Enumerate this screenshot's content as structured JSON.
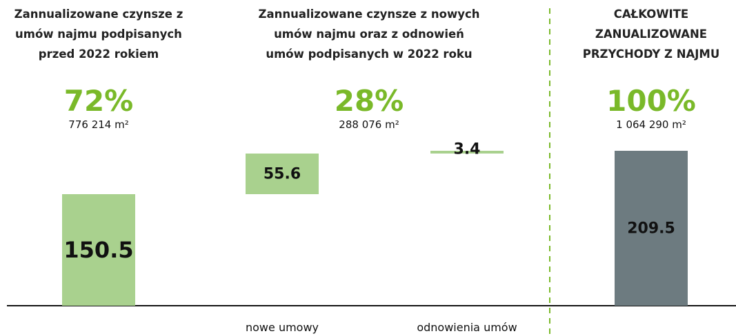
{
  "chart_data": {
    "type": "waterfall",
    "groups": [
      {
        "title_lines": [
          "Zannualizowane czynsze z",
          "umów najmu podpisanych",
          "przed 2022 rokiem"
        ],
        "share": "72%",
        "area": "776 214 m²"
      },
      {
        "title_lines": [
          "Zannualizowane czynsze z nowych",
          "umów najmu oraz z odnowień",
          "umów podpisanych w 2022 roku"
        ],
        "share": "28%",
        "area": "288 076 m²"
      },
      {
        "title_lines": [
          "CAŁKOWITE",
          "ZANUALIZOWANE",
          "PRZYCHODY Z NAJMU"
        ],
        "share": "100%",
        "area": "1 064 290 m²"
      }
    ],
    "categories": [
      null,
      "nowe umowy",
      "odnowienia umów",
      null
    ],
    "values": [
      150.5,
      55.6,
      3.4,
      209.5
    ],
    "totals": [
      false,
      false,
      false,
      true
    ],
    "colors": [
      "#a9d18e",
      "#a9d18e",
      "#a9d18e",
      "#6d7b80"
    ]
  }
}
